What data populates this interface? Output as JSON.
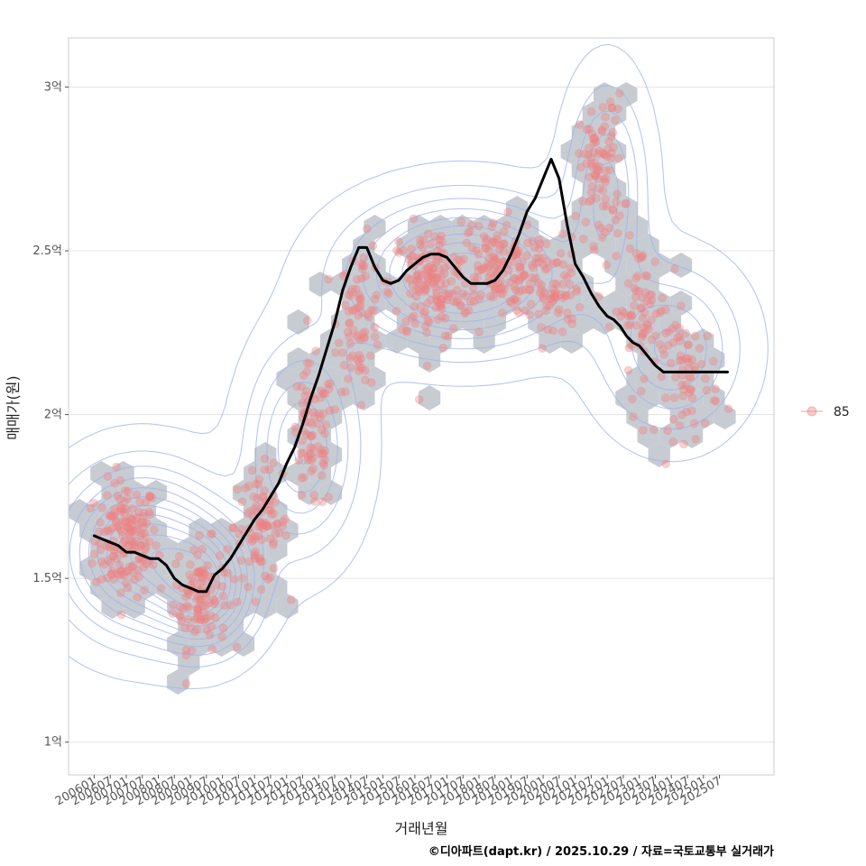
{
  "chart_data": {
    "type": "scatter",
    "title": "",
    "xlabel": "거래년월",
    "ylabel": "매매가(원)",
    "caption": "©디아파트(dapt.kr) / 2025.10.29 / 자료=국토교통부 실거래가",
    "ylim": [
      0.9,
      3.15
    ],
    "xlim": [
      2005.2,
      2027.2
    ],
    "yticks": [
      {
        "value": 1.0,
        "label": "1억"
      },
      {
        "value": 1.5,
        "label": "1.5억"
      },
      {
        "value": 2.0,
        "label": "2억"
      },
      {
        "value": 2.5,
        "label": "2.5억"
      },
      {
        "value": 3.0,
        "label": "3억"
      }
    ],
    "xticks": [
      {
        "value": 2006.0,
        "label": "200601"
      },
      {
        "value": 2006.5,
        "label": "200607"
      },
      {
        "value": 2007.0,
        "label": "200701"
      },
      {
        "value": 2007.5,
        "label": "200707"
      },
      {
        "value": 2008.0,
        "label": "200801"
      },
      {
        "value": 2008.5,
        "label": "200807"
      },
      {
        "value": 2009.0,
        "label": "200901"
      },
      {
        "value": 2009.5,
        "label": "200907"
      },
      {
        "value": 2010.0,
        "label": "201001"
      },
      {
        "value": 2010.5,
        "label": "201007"
      },
      {
        "value": 2011.0,
        "label": "201101"
      },
      {
        "value": 2011.5,
        "label": "201107"
      },
      {
        "value": 2012.0,
        "label": "201201"
      },
      {
        "value": 2012.5,
        "label": "201207"
      },
      {
        "value": 2013.0,
        "label": "201301"
      },
      {
        "value": 2013.5,
        "label": "201307"
      },
      {
        "value": 2014.0,
        "label": "201401"
      },
      {
        "value": 2014.5,
        "label": "201407"
      },
      {
        "value": 2015.0,
        "label": "201501"
      },
      {
        "value": 2015.5,
        "label": "201507"
      },
      {
        "value": 2016.0,
        "label": "201601"
      },
      {
        "value": 2016.5,
        "label": "201607"
      },
      {
        "value": 2017.0,
        "label": "201701"
      },
      {
        "value": 2017.5,
        "label": "201707"
      },
      {
        "value": 2018.0,
        "label": "201801"
      },
      {
        "value": 2018.5,
        "label": "201807"
      },
      {
        "value": 2019.0,
        "label": "201901"
      },
      {
        "value": 2019.5,
        "label": "201907"
      },
      {
        "value": 2020.0,
        "label": "202001"
      },
      {
        "value": 2020.5,
        "label": "202007"
      },
      {
        "value": 2021.0,
        "label": "202101"
      },
      {
        "value": 2021.5,
        "label": "202107"
      },
      {
        "value": 2022.0,
        "label": "202201"
      },
      {
        "value": 2022.5,
        "label": "202207"
      },
      {
        "value": 2023.0,
        "label": "202301"
      },
      {
        "value": 2023.5,
        "label": "202307"
      },
      {
        "value": 2024.0,
        "label": "202401"
      },
      {
        "value": 2024.5,
        "label": "202407"
      },
      {
        "value": 2025.0,
        "label": "202501"
      },
      {
        "value": 2025.5,
        "label": "202507"
      }
    ],
    "legend": [
      {
        "name": "85",
        "color": "#f08080"
      }
    ],
    "legend_position": "right",
    "colors": {
      "points": "#f08080",
      "hex": "#c4c9d0",
      "contour": "#9fb3ee",
      "trend": "#000000",
      "grid": "#e3e3e3",
      "panel_border": "#cccccc"
    },
    "trend": {
      "x": [
        2006.0,
        2006.25,
        2006.5,
        2006.75,
        2007.0,
        2007.25,
        2007.5,
        2007.75,
        2008.0,
        2008.25,
        2008.5,
        2008.75,
        2009.0,
        2009.25,
        2009.5,
        2009.75,
        2010.0,
        2010.25,
        2010.5,
        2010.75,
        2011.0,
        2011.25,
        2011.5,
        2011.75,
        2012.0,
        2012.25,
        2012.5,
        2012.75,
        2013.0,
        2013.25,
        2013.5,
        2013.75,
        2014.0,
        2014.25,
        2014.5,
        2014.75,
        2015.0,
        2015.25,
        2015.5,
        2015.75,
        2016.0,
        2016.25,
        2016.5,
        2016.75,
        2017.0,
        2017.25,
        2017.5,
        2017.75,
        2018.0,
        2018.25,
        2018.5,
        2018.75,
        2019.0,
        2019.25,
        2019.5,
        2019.75,
        2020.0,
        2020.25,
        2020.5,
        2020.75,
        2021.0,
        2021.25,
        2021.5,
        2021.75,
        2022.0,
        2022.2,
        2022.4,
        2022.6,
        2022.8,
        2023.0,
        2023.25,
        2023.5,
        2023.75,
        2024.0,
        2024.25,
        2024.5,
        2024.75,
        2025.0,
        2025.25,
        2025.5,
        2025.75
      ],
      "y": [
        1.63,
        1.62,
        1.61,
        1.6,
        1.58,
        1.58,
        1.57,
        1.56,
        1.56,
        1.54,
        1.5,
        1.48,
        1.47,
        1.46,
        1.46,
        1.51,
        1.53,
        1.56,
        1.6,
        1.64,
        1.68,
        1.71,
        1.75,
        1.79,
        1.85,
        1.9,
        1.97,
        2.05,
        2.12,
        2.2,
        2.28,
        2.38,
        2.45,
        2.51,
        2.51,
        2.45,
        2.41,
        2.4,
        2.41,
        2.44,
        2.46,
        2.48,
        2.49,
        2.49,
        2.48,
        2.45,
        2.42,
        2.4,
        2.4,
        2.4,
        2.41,
        2.44,
        2.49,
        2.55,
        2.62,
        2.66,
        2.72,
        2.78,
        2.72,
        2.58,
        2.46,
        2.42,
        2.37,
        2.33,
        2.3,
        2.29,
        2.27,
        2.24,
        2.22,
        2.21,
        2.18,
        2.15,
        2.13,
        2.13,
        2.13,
        2.13,
        2.13,
        2.13,
        2.13,
        2.13,
        2.13
      ]
    },
    "scatter_clusters": [
      {
        "x": 2007.0,
        "y": 1.62,
        "sx": 0.7,
        "sy": 0.11,
        "n": 160
      },
      {
        "x": 2009.3,
        "y": 1.45,
        "sx": 0.6,
        "sy": 0.1,
        "n": 110
      },
      {
        "x": 2011.2,
        "y": 1.66,
        "sx": 0.6,
        "sy": 0.11,
        "n": 90
      },
      {
        "x": 2012.8,
        "y": 1.92,
        "sx": 0.5,
        "sy": 0.14,
        "n": 80
      },
      {
        "x": 2014.3,
        "y": 2.3,
        "sx": 0.5,
        "sy": 0.14,
        "n": 80
      },
      {
        "x": 2016.5,
        "y": 2.4,
        "sx": 0.9,
        "sy": 0.11,
        "n": 150
      },
      {
        "x": 2018.5,
        "y": 2.45,
        "sx": 0.9,
        "sy": 0.09,
        "n": 130
      },
      {
        "x": 2020.2,
        "y": 2.38,
        "sx": 0.7,
        "sy": 0.1,
        "n": 80
      },
      {
        "x": 2021.8,
        "y": 2.75,
        "sx": 0.5,
        "sy": 0.14,
        "n": 90
      },
      {
        "x": 2023.0,
        "y": 2.32,
        "sx": 0.6,
        "sy": 0.13,
        "n": 70
      },
      {
        "x": 2024.5,
        "y": 2.12,
        "sx": 0.7,
        "sy": 0.12,
        "n": 70
      }
    ],
    "density_centers": [
      {
        "x": 2007.5,
        "y": 1.58,
        "sx": 1.6,
        "sy": 0.16,
        "w": 1.0
      },
      {
        "x": 2009.5,
        "y": 1.47,
        "sx": 1.0,
        "sy": 0.12,
        "w": 0.8
      },
      {
        "x": 2012.5,
        "y": 1.9,
        "sx": 1.1,
        "sy": 0.2,
        "w": 0.6
      },
      {
        "x": 2017.5,
        "y": 2.43,
        "sx": 2.2,
        "sy": 0.14,
        "w": 1.0
      },
      {
        "x": 2022.0,
        "y": 2.7,
        "sx": 0.8,
        "sy": 0.2,
        "w": 0.5
      },
      {
        "x": 2024.0,
        "y": 2.2,
        "sx": 1.4,
        "sy": 0.16,
        "w": 0.5
      }
    ]
  }
}
